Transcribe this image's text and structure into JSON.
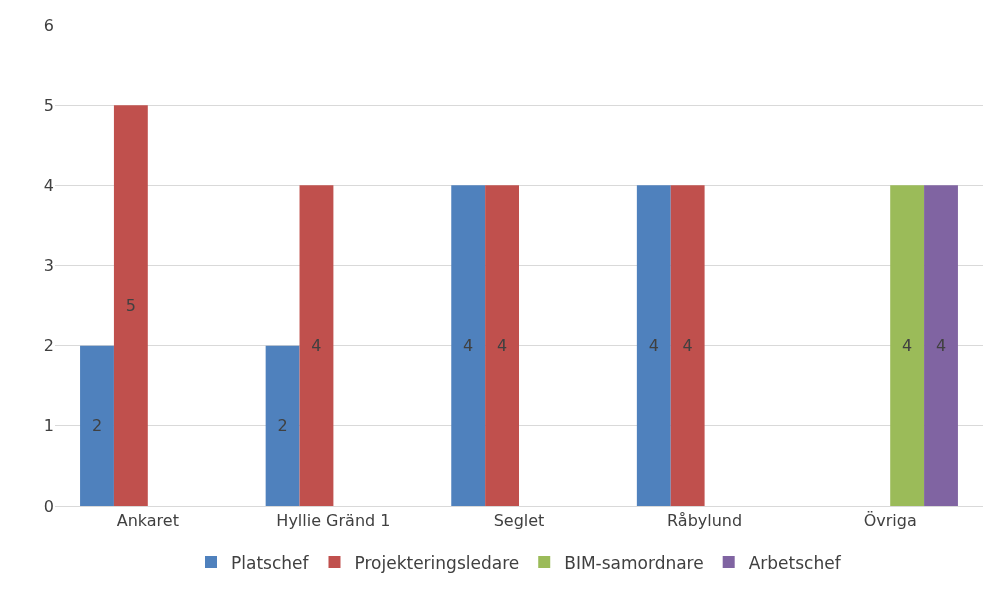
{
  "chart_data": {
    "type": "bar",
    "categories": [
      "Ankaret",
      "Hyllie Gränd 1",
      "Seglet",
      "Råbylund",
      "Övriga"
    ],
    "series": [
      {
        "name": "Platschef",
        "color": "#4f81bd",
        "values": [
          2,
          2,
          4,
          4,
          null
        ]
      },
      {
        "name": "Projekteringsledare",
        "color": "#c0504d",
        "values": [
          5,
          4,
          4,
          4,
          null
        ]
      },
      {
        "name": "BIM-samordnare",
        "color": "#9bbb59",
        "values": [
          null,
          null,
          null,
          null,
          4
        ]
      },
      {
        "name": "Arbetschef",
        "color": "#8064a2",
        "values": [
          null,
          null,
          null,
          null,
          4
        ]
      }
    ],
    "ylim": [
      0,
      6
    ],
    "yticks": [
      0,
      1,
      2,
      3,
      4,
      5,
      6
    ],
    "grid": "y",
    "legend": "bottom",
    "data_labels": true
  }
}
